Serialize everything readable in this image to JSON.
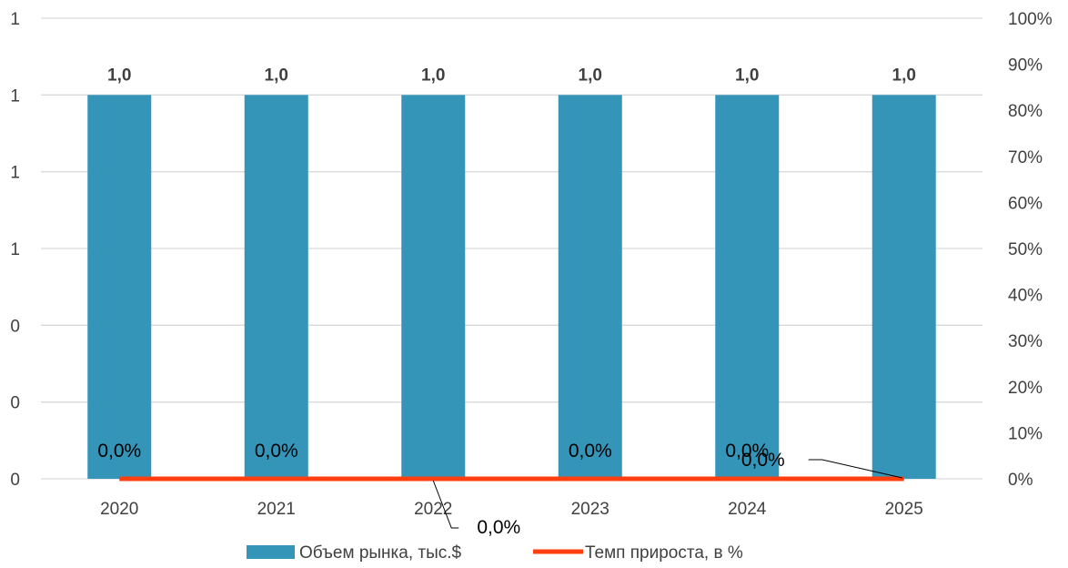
{
  "chart_data": {
    "type": "bar",
    "categories": [
      "2020",
      "2021",
      "2022",
      "2023",
      "2024",
      "2025"
    ],
    "series": [
      {
        "name": "Объем рынка, тыс.$",
        "type": "bar",
        "axis": "left",
        "values": [
          1.0,
          1.0,
          1.0,
          1.0,
          1.0,
          1.0
        ],
        "data_labels": [
          "1,0",
          "1,0",
          "1,0",
          "1,0",
          "1,0",
          "1,0"
        ],
        "color": "#3595B9"
      },
      {
        "name": "Темп прироста, в %",
        "type": "line",
        "axis": "right",
        "values": [
          0,
          0,
          0,
          0,
          0,
          0
        ],
        "data_labels": [
          "0,0%",
          "0,0%",
          "0,0%",
          "0,0%",
          "0,0%",
          "0,0%"
        ],
        "color": "#FF3F0F"
      }
    ],
    "left_axis": {
      "ylim": [
        0,
        1.2
      ],
      "tick_labels": [
        "0",
        "0",
        "0",
        "1",
        "1",
        "1",
        "1"
      ]
    },
    "right_axis": {
      "ylim": [
        0,
        1.0
      ],
      "tick_labels": [
        "0%",
        "10%",
        "20%",
        "30%",
        "40%",
        "50%",
        "60%",
        "70%",
        "80%",
        "90%",
        "100%"
      ]
    },
    "title": "",
    "xlabel": "",
    "ylabel": "",
    "grid": true,
    "legend_position": "bottom",
    "grid_color": "#D9D9D9"
  }
}
